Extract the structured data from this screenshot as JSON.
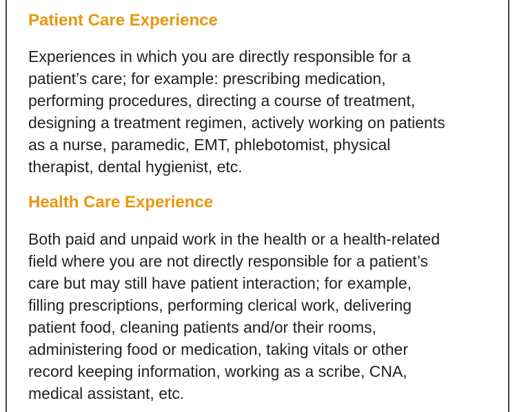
{
  "sections": [
    {
      "heading": "Patient Care Experience",
      "lines": [
        "Experiences in which you are directly responsible for a",
        "patient’s care; for example: prescribing medication,",
        "performing procedures, directing a course of treatment,",
        "designing a treatment regimen, actively working on patients",
        "as a nurse, paramedic, EMT, phlebotomist, physical",
        "therapist, dental hygienist, etc."
      ]
    },
    {
      "heading": "Health Care Experience",
      "lines": [
        "Both paid and unpaid work in the health or a health-related",
        "field where you are not directly responsible for a patient’s",
        "care but may still have patient interaction; for example,",
        "filling prescriptions, performing clerical work, delivering",
        "patient food, cleaning patients and/or their rooms,",
        "administering food or medication, taking vitals or other",
        "record keeping information, working as a scribe, CNA,",
        "medical assistant, etc."
      ]
    }
  ],
  "colors": {
    "heading": "#e8960f",
    "text": "#222222"
  }
}
